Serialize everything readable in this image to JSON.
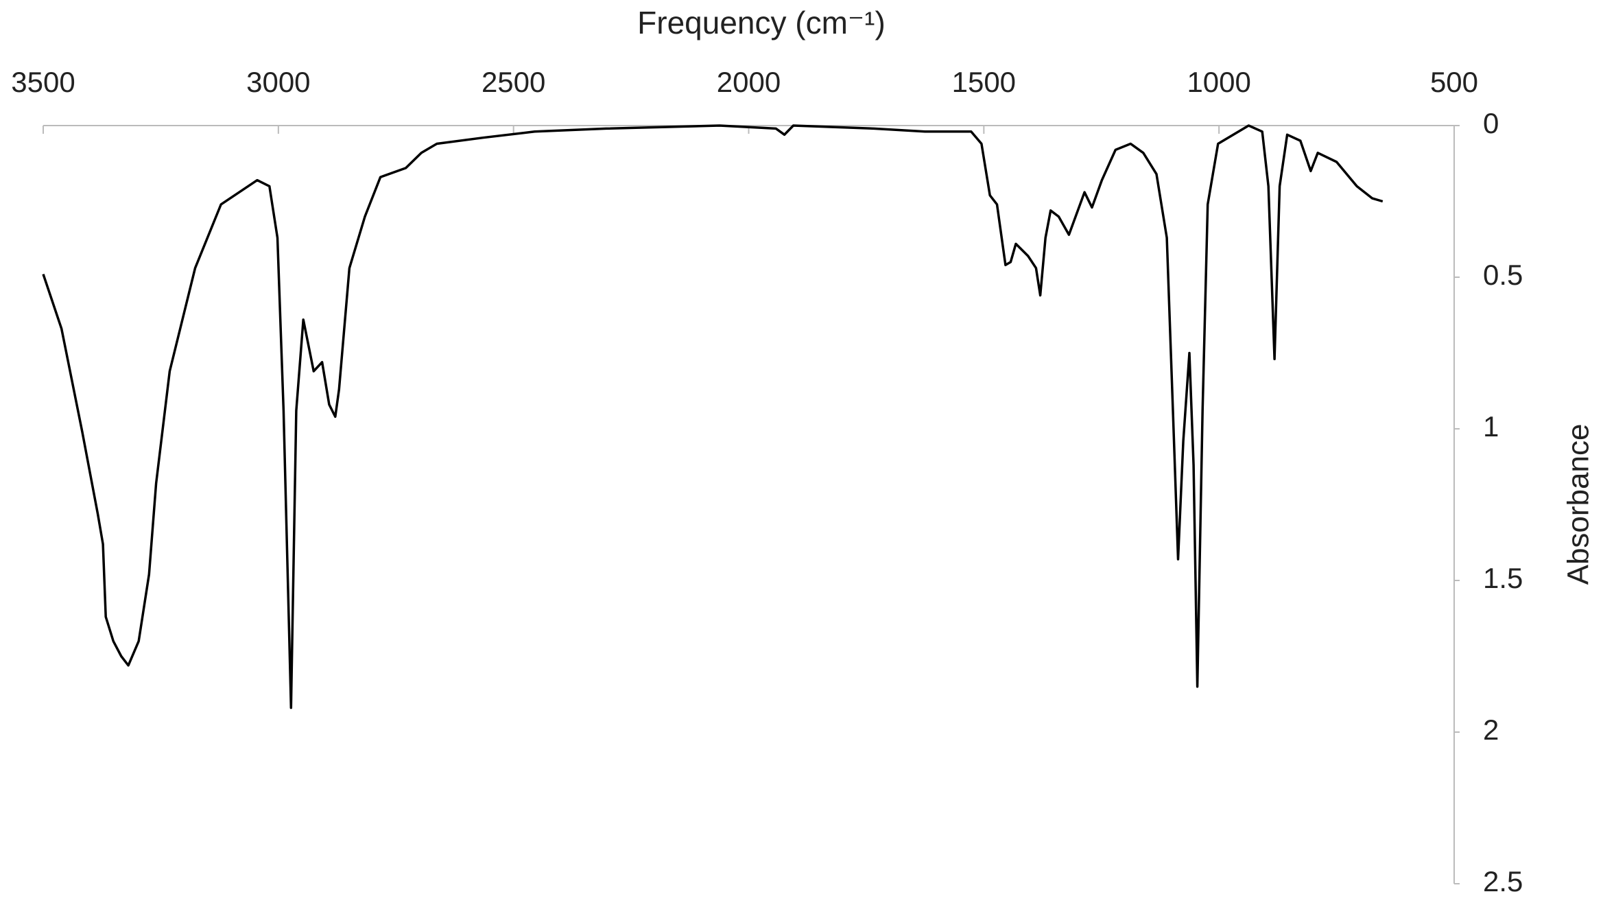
{
  "chart_data": {
    "type": "line",
    "x_label": "Frequency (cm⁻¹)",
    "y_label": "Absorbance",
    "xlim": [
      3500,
      500
    ],
    "xticks": [
      3500,
      3000,
      2500,
      2000,
      1500,
      1000,
      500
    ],
    "ylim": [
      0,
      2.5
    ],
    "yticks": [
      0,
      0.5,
      1,
      1.5,
      2,
      2.5
    ],
    "grid": false,
    "series": [
      {
        "color": "#000000",
        "x": [
          3500,
          3461,
          3417,
          3384,
          3373,
          3367,
          3351,
          3334,
          3319,
          3297,
          3275,
          3260,
          3231,
          3177,
          3122,
          3045,
          3019,
          3002,
          2989,
          2973,
          2962,
          2947,
          2925,
          2907,
          2892,
          2879,
          2871,
          2849,
          2816,
          2783,
          2729,
          2696,
          2663,
          2565,
          2455,
          2303,
          2062,
          1942,
          1924,
          1905,
          1734,
          1625,
          1527,
          1505,
          1487,
          1472,
          1454,
          1443,
          1432,
          1406,
          1389,
          1380,
          1369,
          1358,
          1341,
          1319,
          1286,
          1270,
          1249,
          1220,
          1188,
          1161,
          1133,
          1111,
          1098,
          1087,
          1076,
          1063,
          1054,
          1046,
          1035,
          1024,
          1002,
          937,
          908,
          895,
          882,
          871,
          855,
          827,
          805,
          790,
          750,
          707,
          674,
          652
        ],
        "values": [
          0.49,
          0.67,
          1.01,
          1.28,
          1.38,
          1.62,
          1.7,
          1.75,
          1.78,
          1.7,
          1.48,
          1.18,
          0.81,
          0.47,
          0.26,
          0.18,
          0.2,
          0.37,
          0.94,
          1.92,
          0.94,
          0.64,
          0.81,
          0.78,
          0.92,
          0.96,
          0.87,
          0.47,
          0.3,
          0.17,
          0.14,
          0.09,
          0.06,
          0.04,
          0.02,
          0.01,
          0.0,
          0.01,
          0.03,
          0.0,
          0.01,
          0.02,
          0.02,
          0.06,
          0.23,
          0.26,
          0.46,
          0.45,
          0.39,
          0.43,
          0.47,
          0.56,
          0.37,
          0.28,
          0.3,
          0.36,
          0.22,
          0.27,
          0.18,
          0.08,
          0.06,
          0.09,
          0.16,
          0.37,
          0.94,
          1.43,
          1.04,
          0.75,
          1.12,
          1.85,
          0.94,
          0.26,
          0.06,
          0.0,
          0.02,
          0.2,
          0.77,
          0.2,
          0.03,
          0.05,
          0.15,
          0.09,
          0.12,
          0.2,
          0.24,
          0.25
        ]
      }
    ]
  }
}
